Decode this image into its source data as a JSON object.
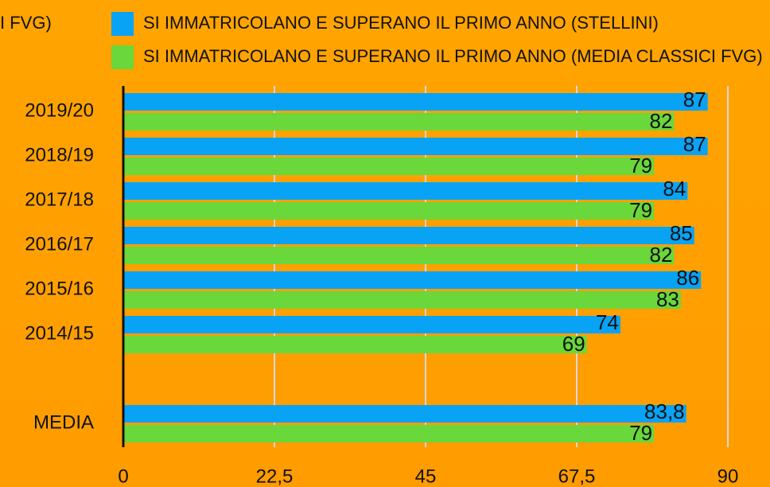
{
  "chart_data": {
    "type": "hbar",
    "annotations": [
      "I FVG)"
    ],
    "categories": [
      "2019/20",
      "2018/19",
      "2017/18",
      "2016/17",
      "2015/16",
      "2014/15",
      null,
      "MEDIA"
    ],
    "series": [
      {
        "name": "SI IMMATRICOLANO E SUPERANO IL PRIMO ANNO (STELLINI)",
        "color": "#08a3f5",
        "values": [
          87,
          87,
          84,
          85,
          86,
          74,
          null,
          83.8
        ],
        "value_labels": [
          "87",
          "87",
          "84",
          "85",
          "86",
          "74",
          null,
          "83,8"
        ]
      },
      {
        "name": "SI IMMATRICOLANO E SUPERANO IL PRIMO ANNO (MEDIA CLASSICI FVG)",
        "color": "#6ad73a",
        "values": [
          82,
          79,
          79,
          82,
          83,
          69,
          null,
          79
        ]
      }
    ],
    "xlim": [
      0,
      90
    ],
    "xticks": [
      0,
      {
        "value": 22.5,
        "label": "22,5"
      },
      45,
      {
        "value": 67.5,
        "label": "67,5"
      },
      90
    ],
    "grid": true
  }
}
